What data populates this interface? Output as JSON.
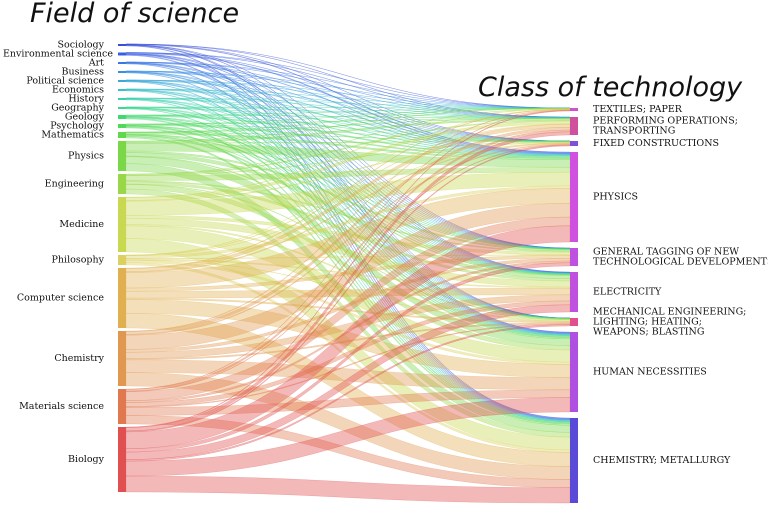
{
  "title_left": "Field of science",
  "title_right": "Class of technology",
  "left_nodes": [
    {
      "label": "Sociology",
      "size": 2,
      "color": "#3a4fd8"
    },
    {
      "label": "Environmental science",
      "size": 3,
      "color": "#3a5ee0"
    },
    {
      "label": "Art",
      "size": 2,
      "color": "#3a78e0"
    },
    {
      "label": "Business",
      "size": 2,
      "color": "#3a90e0"
    },
    {
      "label": "Political science",
      "size": 2,
      "color": "#3aa8d8"
    },
    {
      "label": "Economics",
      "size": 2,
      "color": "#3ac0c8"
    },
    {
      "label": "History",
      "size": 2,
      "color": "#3ad0b0"
    },
    {
      "label": "Geography",
      "size": 2,
      "color": "#3ad890"
    },
    {
      "label": "Geology",
      "size": 4,
      "color": "#40d870"
    },
    {
      "label": "Psychology",
      "size": 4,
      "color": "#50d858"
    },
    {
      "label": "Mathematics",
      "size": 6,
      "color": "#60d84a"
    },
    {
      "label": "Physics",
      "size": 30,
      "color": "#7ad848"
    },
    {
      "label": "Engineering",
      "size": 20,
      "color": "#98d848"
    },
    {
      "label": "Medicine",
      "size": 55,
      "color": "#c8d850"
    },
    {
      "label": "Philosophy",
      "size": 10,
      "color": "#dcd060"
    },
    {
      "label": "Computer science",
      "size": 60,
      "color": "#e0b050"
    },
    {
      "label": "Chemistry",
      "size": 55,
      "color": "#e09850"
    },
    {
      "label": "Materials science",
      "size": 35,
      "color": "#e07850"
    },
    {
      "label": "Biology",
      "size": 65,
      "color": "#e05050"
    }
  ],
  "right_nodes": [
    {
      "label": [
        "TEXTILES; PAPER"
      ],
      "size": 3,
      "color": "#d050d0"
    },
    {
      "label": [
        "PERFORMING OPERATIONS;",
        "TRANSPORTING"
      ],
      "size": 18,
      "color": "#d050a0"
    },
    {
      "label": [
        "FIXED CONSTRUCTIONS"
      ],
      "size": 5,
      "color": "#8050d8"
    },
    {
      "label": [
        "PHYSICS"
      ],
      "size": 90,
      "color": "#d050e0"
    },
    {
      "label": [
        "GENERAL TAGGING OF NEW",
        "TECHNOLOGICAL DEVELOPMENTS;"
      ],
      "size": 18,
      "color": "#c050e0"
    },
    {
      "label": [
        "ELECTRICITY"
      ],
      "size": 40,
      "color": "#c050e0"
    },
    {
      "label": [
        "MECHANICAL ENGINEERING;",
        "LIGHTING; HEATING;",
        "WEAPONS; BLASTING"
      ],
      "size": 8,
      "color": "#e05090"
    },
    {
      "label": [
        "HUMAN NECESSITIES"
      ],
      "size": 80,
      "color": "#b050e0"
    },
    {
      "label": [
        "CHEMISTRY; METALLURGY"
      ],
      "size": 85,
      "color": "#5a4ad8"
    }
  ]
}
